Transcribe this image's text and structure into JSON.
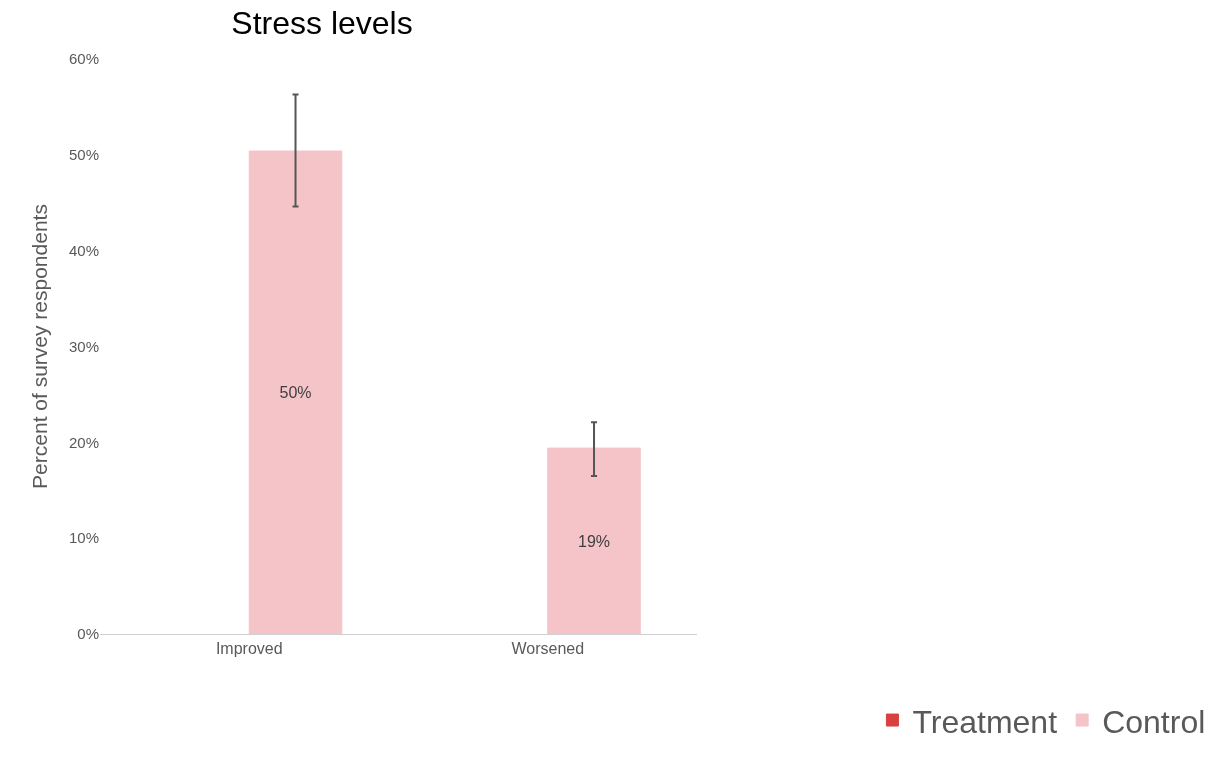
{
  "chart_data": {
    "type": "bar",
    "title": "Stress levels",
    "ylabel": "Percent of survey respondents",
    "categories": [
      "Improved",
      "Worsened"
    ],
    "series": [
      {
        "name": "Treatment",
        "color": "#d94040",
        "values": [
          null,
          null
        ]
      },
      {
        "name": "Control",
        "color": "#f4c4c8",
        "values": [
          50.4,
          19.4
        ],
        "errors": [
          [
            44.6,
            56.3
          ],
          [
            16.5,
            22.1
          ]
        ],
        "value_labels": [
          "50%",
          "19%"
        ]
      }
    ],
    "ylim": [
      0,
      60
    ],
    "yticks": [
      {
        "value": 0,
        "label": "0%"
      },
      {
        "value": 10,
        "label": "10%"
      },
      {
        "value": 20,
        "label": "20%"
      },
      {
        "value": 30,
        "label": "30%"
      },
      {
        "value": 40,
        "label": "40%"
      },
      {
        "value": 50,
        "label": "50%"
      },
      {
        "value": 60,
        "label": "60%"
      }
    ],
    "legend": "bottom right"
  }
}
